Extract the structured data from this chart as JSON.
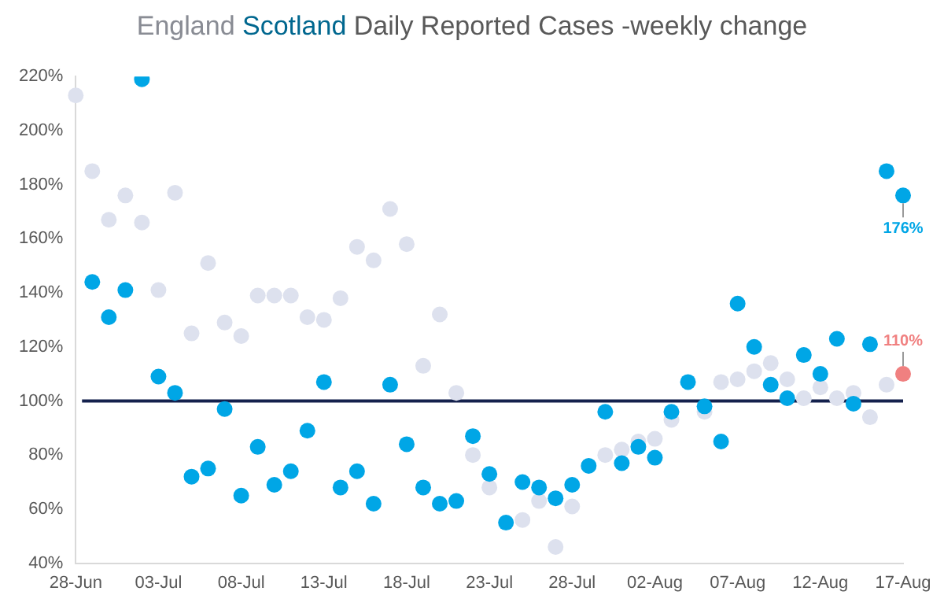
{
  "chart_data": {
    "type": "scatter",
    "title": "Daily Reported Cases -weekly change",
    "categories": [
      "28-Jun",
      null,
      null,
      null,
      null,
      "03-Jul",
      null,
      null,
      null,
      null,
      "08-Jul",
      null,
      null,
      null,
      null,
      "13-Jul",
      null,
      null,
      null,
      null,
      "18-Jul",
      null,
      null,
      null,
      null,
      "23-Jul",
      null,
      null,
      null,
      null,
      "28-Jul",
      null,
      null,
      null,
      null,
      "02-Aug",
      null,
      null,
      null,
      null,
      "07-Aug",
      null,
      null,
      null,
      null,
      "12-Aug",
      null,
      null,
      null,
      null,
      "17-Aug"
    ],
    "series": [
      {
        "name": "England",
        "color": "#dde1ee",
        "colors": [
          "#dde1ee",
          "#dde1ee",
          "#dde1ee",
          "#dde1ee",
          "#dde1ee",
          "#dde1ee",
          "#dde1ee",
          "#dde1ee",
          "#dde1ee",
          "#dde1ee",
          "#dde1ee",
          "#dde1ee",
          "#dde1ee",
          "#dde1ee",
          "#dde1ee",
          "#dde1ee",
          "#dde1ee",
          "#dde1ee",
          "#dde1ee",
          "#dde1ee",
          "#dde1ee",
          "#dde1ee",
          "#dde1ee",
          "#dde1ee",
          "#dde1ee",
          "#dde1ee",
          "#dde1ee",
          "#dde1ee",
          "#dde1ee",
          "#dde1ee",
          "#dde1ee",
          "#dde1ee",
          "#dde1ee",
          "#dde1ee",
          "#dde1ee",
          "#dde1ee",
          "#dde1ee",
          "#dde1ee",
          "#dde1ee",
          "#dde1ee",
          "#dde1ee",
          "#dde1ee",
          "#dde1ee",
          "#dde1ee",
          "#dde1ee",
          "#dde1ee",
          "#dde1ee",
          "#dde1ee",
          "#dde1ee",
          "#dde1ee",
          "#f08080"
        ],
        "values": [
          213,
          185,
          167,
          176,
          166,
          141,
          177,
          125,
          151,
          129,
          124,
          139,
          139,
          139,
          131,
          130,
          138,
          157,
          152,
          171,
          158,
          113,
          132,
          103,
          80,
          68,
          null,
          56,
          63,
          46,
          61,
          null,
          80,
          82,
          85,
          86,
          93,
          null,
          96,
          107,
          108,
          111,
          114,
          108,
          101,
          105,
          101,
          103,
          94,
          106,
          110
        ],
        "value_labels": [
          null,
          null,
          null,
          null,
          null,
          null,
          null,
          null,
          null,
          null,
          null,
          null,
          null,
          null,
          null,
          null,
          null,
          null,
          null,
          null,
          null,
          null,
          null,
          null,
          null,
          null,
          null,
          null,
          null,
          null,
          null,
          null,
          null,
          null,
          null,
          null,
          null,
          null,
          null,
          null,
          null,
          null,
          null,
          null,
          null,
          null,
          null,
          null,
          null,
          null,
          "110%"
        ]
      },
      {
        "name": "Scotland",
        "color": "#00a6e6",
        "values": [
          null,
          144,
          131,
          141,
          219,
          109,
          103,
          72,
          75,
          97,
          65,
          83,
          69,
          74,
          89,
          107,
          68,
          74,
          62,
          106,
          84,
          68,
          62,
          63,
          87,
          73,
          55,
          70,
          68,
          64,
          69,
          76,
          96,
          77,
          83,
          79,
          96,
          107,
          98,
          85,
          136,
          120,
          106,
          101,
          117,
          110,
          123,
          99,
          121,
          185,
          176
        ],
        "value_labels": [
          null,
          null,
          null,
          null,
          null,
          null,
          null,
          null,
          null,
          null,
          null,
          null,
          null,
          null,
          null,
          null,
          null,
          null,
          null,
          null,
          null,
          null,
          null,
          null,
          null,
          null,
          null,
          null,
          null,
          null,
          null,
          null,
          null,
          null,
          null,
          null,
          null,
          null,
          null,
          null,
          null,
          null,
          null,
          null,
          null,
          null,
          null,
          null,
          null,
          null,
          "176%"
        ]
      }
    ],
    "ylim": [
      40,
      220
    ],
    "yticks": [
      {
        "value": 40,
        "label": "40%"
      },
      {
        "value": 60,
        "label": "60%"
      },
      {
        "value": 80,
        "label": "80%"
      },
      {
        "value": 100,
        "label": "100%"
      },
      {
        "value": 120,
        "label": "120%"
      },
      {
        "value": 140,
        "label": "140%"
      },
      {
        "value": 160,
        "label": "160%"
      },
      {
        "value": 180,
        "label": "180%"
      },
      {
        "value": 200,
        "label": "200%"
      },
      {
        "value": 220,
        "label": "220%"
      }
    ],
    "ref_lines": [
      {
        "axis": "y",
        "value": 100,
        "color": "#14214d"
      }
    ],
    "marker": "circle",
    "legend": false,
    "grid": false
  }
}
